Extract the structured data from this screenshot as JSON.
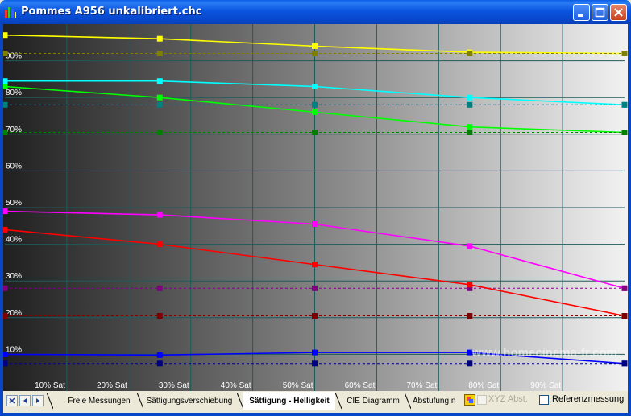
{
  "window": {
    "title": "Pommes A956 unkalibriert.chc",
    "icon": "bar-chart-app-icon",
    "buttons": [
      "minimize",
      "maximize",
      "close"
    ]
  },
  "watermark": "www.homecinema-fr.com",
  "tabs": [
    {
      "label": "Freie Messungen",
      "active": false
    },
    {
      "label": "Sättigungsverschiebung",
      "active": false
    },
    {
      "label": "Sättigung - Helligkeit",
      "active": true
    },
    {
      "label": "CIE Diagramm",
      "active": false
    },
    {
      "label": "Abstufung n",
      "active": false
    }
  ],
  "nav_icons": [
    "close-x-icon",
    "arrow-left-icon",
    "arrow-right-icon"
  ],
  "checkboxes": [
    {
      "label": "XYZ Abst.",
      "checked": false,
      "enabled": false
    },
    {
      "label": "Referenzmessung",
      "checked": false,
      "enabled": true
    }
  ],
  "chart_data": {
    "type": "line",
    "x_tick_labels": [
      "10% Sat",
      "20% Sat",
      "30% Sat",
      "40% Sat",
      "50% Sat",
      "60% Sat",
      "70% Sat",
      "80% Sat",
      "90% Sat"
    ],
    "y_tick_labels": [
      "10%",
      "20%",
      "30%",
      "40%",
      "50%",
      "60%",
      "70%",
      "80%",
      "90%"
    ],
    "xlim": [
      0,
      100
    ],
    "ylim": [
      0,
      100
    ],
    "grid": true,
    "background": "gray gradient, dark to light",
    "series": [
      {
        "color": "#ffff00",
        "style": "solid",
        "x": [
          0,
          25,
          50,
          75,
          100
        ],
        "y": [
          97.0,
          96.0,
          94.0,
          92.3,
          92.0
        ]
      },
      {
        "color": "#808000",
        "style": "dashed",
        "x": [
          0,
          25,
          50,
          75,
          100
        ],
        "y": [
          92.0,
          92.0,
          92.0,
          92.0,
          92.0
        ]
      },
      {
        "color": "#00ffff",
        "style": "solid",
        "x": [
          0,
          25,
          50,
          75,
          100
        ],
        "y": [
          84.5,
          84.5,
          83.0,
          80.0,
          78.0
        ]
      },
      {
        "color": "#008080",
        "style": "dashed",
        "x": [
          0,
          25,
          50,
          75,
          100
        ],
        "y": [
          78.0,
          78.0,
          78.0,
          78.0,
          78.0
        ]
      },
      {
        "color": "#00ff00",
        "style": "solid",
        "x": [
          0,
          25,
          50,
          75,
          100
        ],
        "y": [
          83.0,
          80.0,
          76.0,
          72.0,
          70.5
        ]
      },
      {
        "color": "#008000",
        "style": "dashed",
        "x": [
          0,
          25,
          50,
          75,
          100
        ],
        "y": [
          70.5,
          70.5,
          70.5,
          70.5,
          70.5
        ]
      },
      {
        "color": "#ff00ff",
        "style": "solid",
        "x": [
          0,
          25,
          50,
          75,
          100
        ],
        "y": [
          49.0,
          48.0,
          45.5,
          39.5,
          28.0
        ]
      },
      {
        "color": "#800080",
        "style": "dashed",
        "x": [
          0,
          25,
          50,
          75,
          100
        ],
        "y": [
          28.0,
          28.0,
          28.0,
          28.0,
          28.0
        ]
      },
      {
        "color": "#ff0000",
        "style": "solid",
        "x": [
          0,
          25,
          50,
          75,
          100
        ],
        "y": [
          44.0,
          40.0,
          34.5,
          29.0,
          20.5
        ]
      },
      {
        "color": "#800000",
        "style": "dashed",
        "x": [
          0,
          25,
          50,
          75,
          100
        ],
        "y": [
          20.5,
          20.5,
          20.5,
          20.5,
          20.5
        ]
      },
      {
        "color": "#0000ff",
        "style": "solid",
        "x": [
          0,
          25,
          50,
          75,
          100
        ],
        "y": [
          10.0,
          9.8,
          10.5,
          10.5,
          7.5
        ]
      },
      {
        "color": "#000080",
        "style": "dashed",
        "x": [
          0,
          25,
          50,
          75,
          100
        ],
        "y": [
          7.5,
          7.5,
          7.5,
          7.5,
          7.5
        ]
      }
    ]
  }
}
